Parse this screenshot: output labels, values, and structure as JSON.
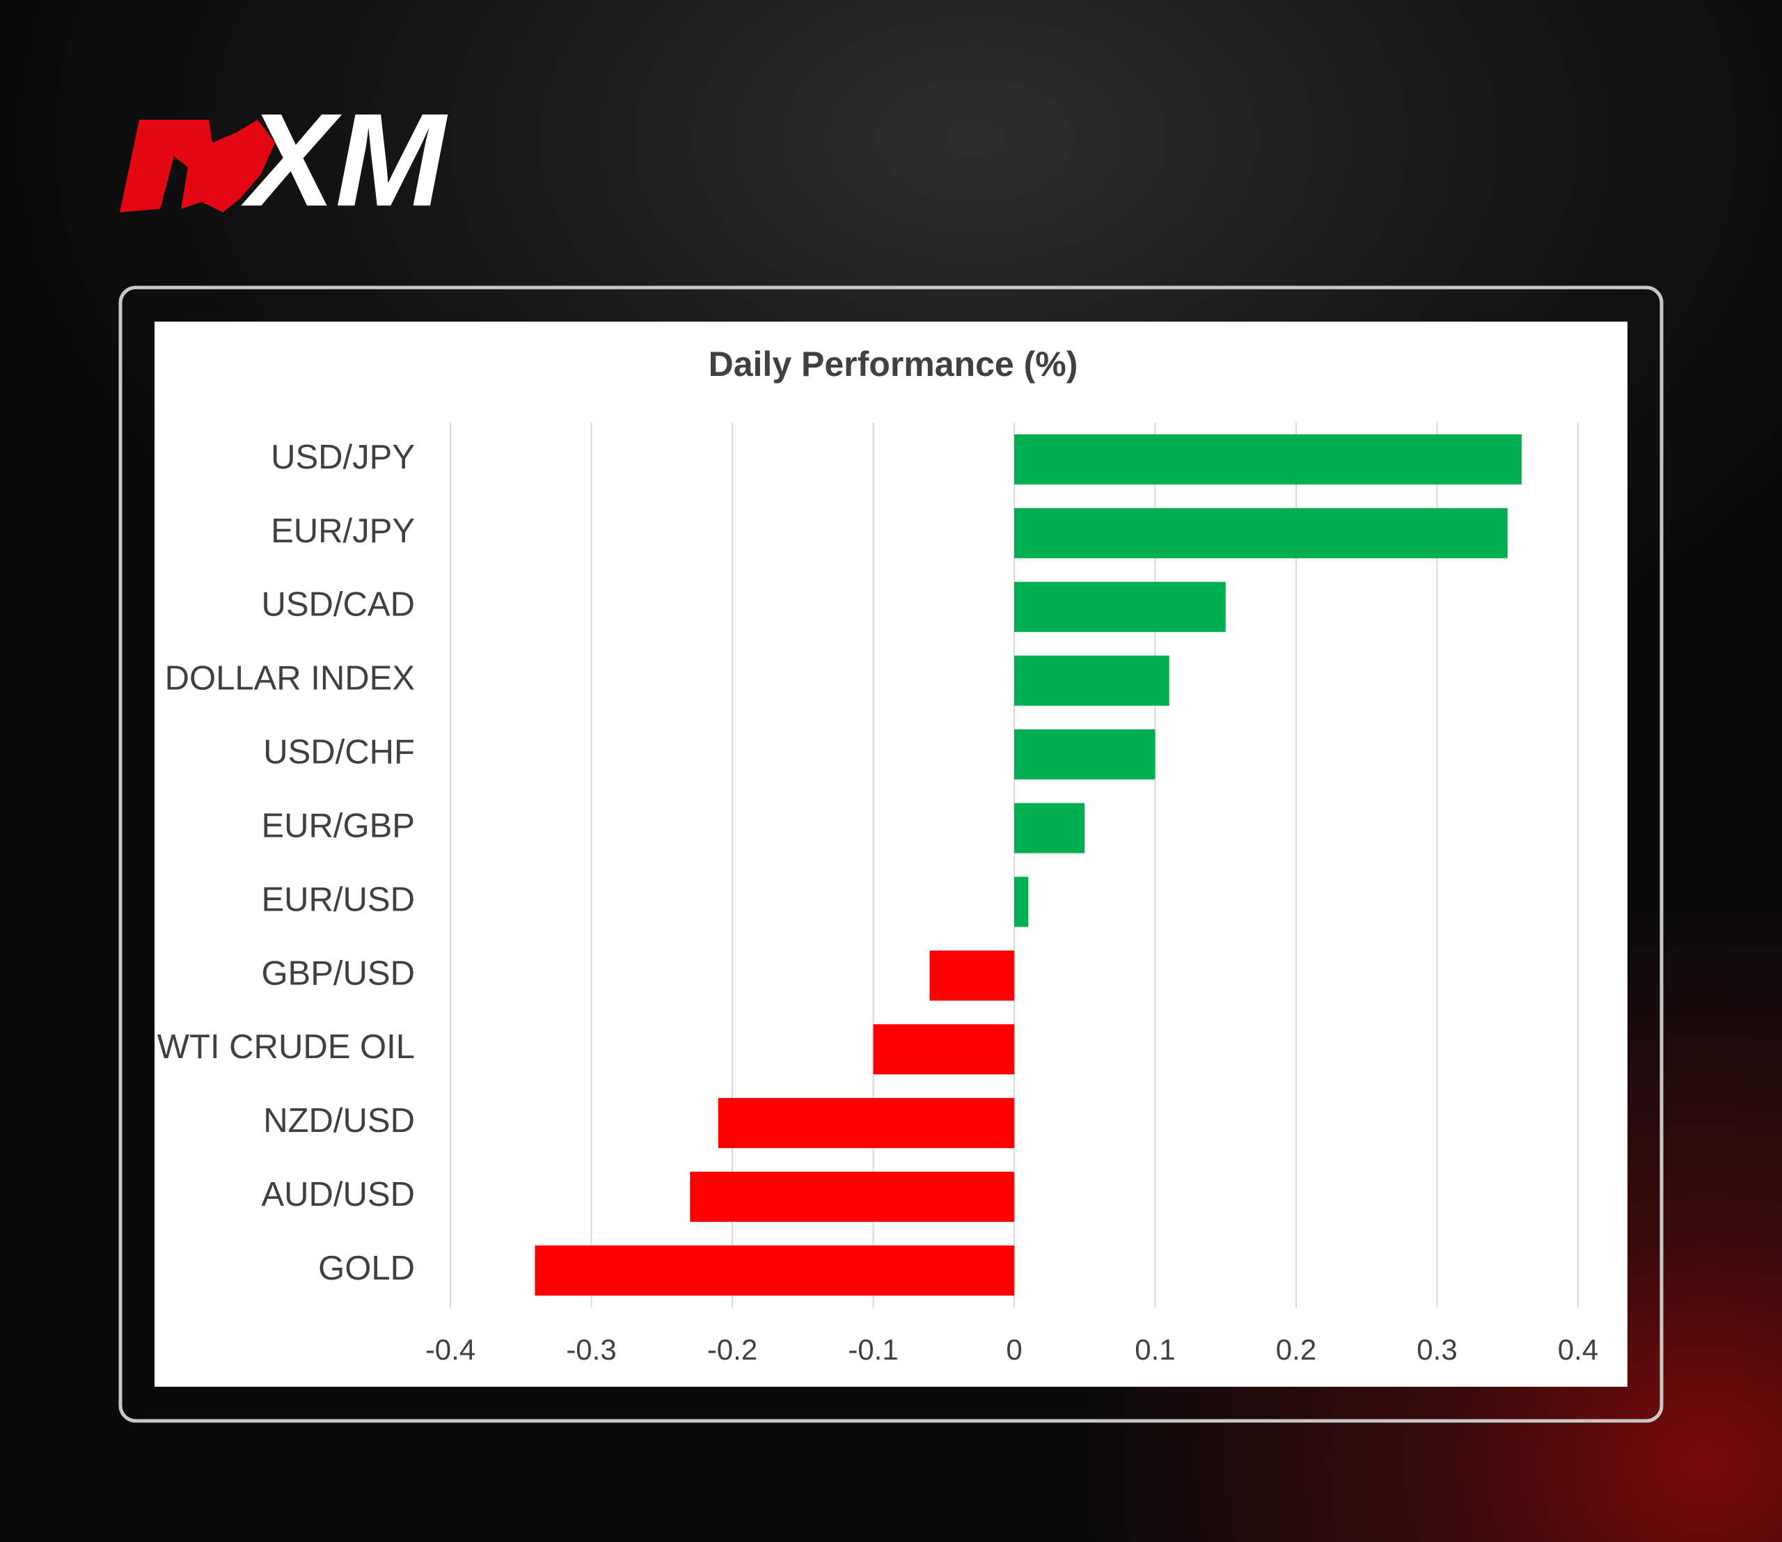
{
  "logo": "XM",
  "chart_data": {
    "type": "bar",
    "orientation": "horizontal",
    "title": "Daily Performance (%)",
    "categories": [
      "USD/JPY",
      "EUR/JPY",
      "USD/CAD",
      "DOLLAR INDEX",
      "USD/CHF",
      "EUR/GBP",
      "EUR/USD",
      "GBP/USD",
      "WTI CRUDE OIL",
      "NZD/USD",
      "AUD/USD",
      "GOLD"
    ],
    "values": [
      0.36,
      0.35,
      0.15,
      0.11,
      0.1,
      0.05,
      0.01,
      -0.06,
      -0.1,
      -0.21,
      -0.23,
      -0.34
    ],
    "positive_color": "#00b050",
    "negative_color": "#ff0000",
    "xlim": [
      -0.4,
      0.4
    ],
    "xticks": [
      -0.4,
      -0.3,
      -0.2,
      -0.1,
      0,
      0.1,
      0.2,
      0.3,
      0.4
    ],
    "grid": true
  }
}
